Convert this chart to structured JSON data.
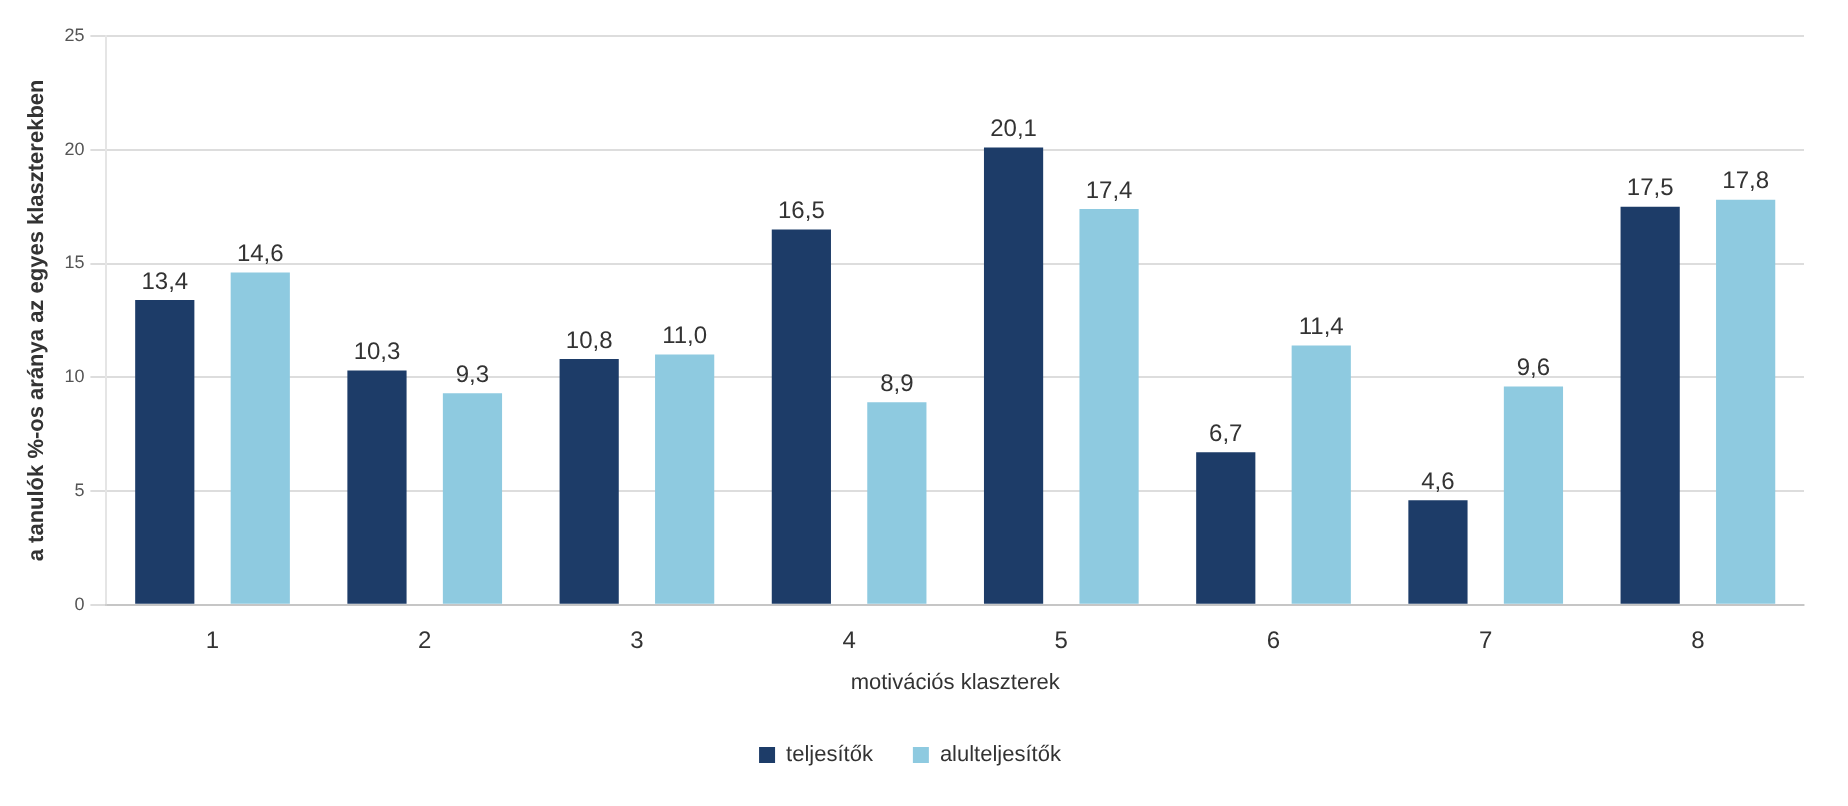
{
  "chart_data": {
    "type": "bar",
    "xlabel": "motivációs klaszterek",
    "ylabel": "a tanulók %-os aránya az egyes klaszterekben",
    "categories": [
      "1",
      "2",
      "3",
      "4",
      "5",
      "6",
      "7",
      "8"
    ],
    "series": [
      {
        "name": "teljesítők",
        "color": "#1d3c68",
        "values": [
          13.4,
          10.3,
          10.8,
          16.5,
          20.1,
          6.7,
          4.6,
          17.5
        ],
        "value_labels": [
          "13,4",
          "10,3",
          "10,8",
          "16,5",
          "20,1",
          "6,7",
          "4,6",
          "17,5"
        ]
      },
      {
        "name": "alulteljesítők",
        "color": "#8ecae0",
        "values": [
          14.6,
          9.3,
          11.0,
          8.9,
          17.4,
          11.4,
          9.6,
          17.8
        ],
        "value_labels": [
          "14,6",
          "9,3",
          "11,0",
          "8,9",
          "17,4",
          "11,4",
          "9,6",
          "17,8"
        ]
      }
    ],
    "ylim": [
      0,
      25
    ],
    "yticks": [
      0,
      5,
      10,
      15,
      20,
      25
    ],
    "grid": "y",
    "legend": "bottom"
  }
}
